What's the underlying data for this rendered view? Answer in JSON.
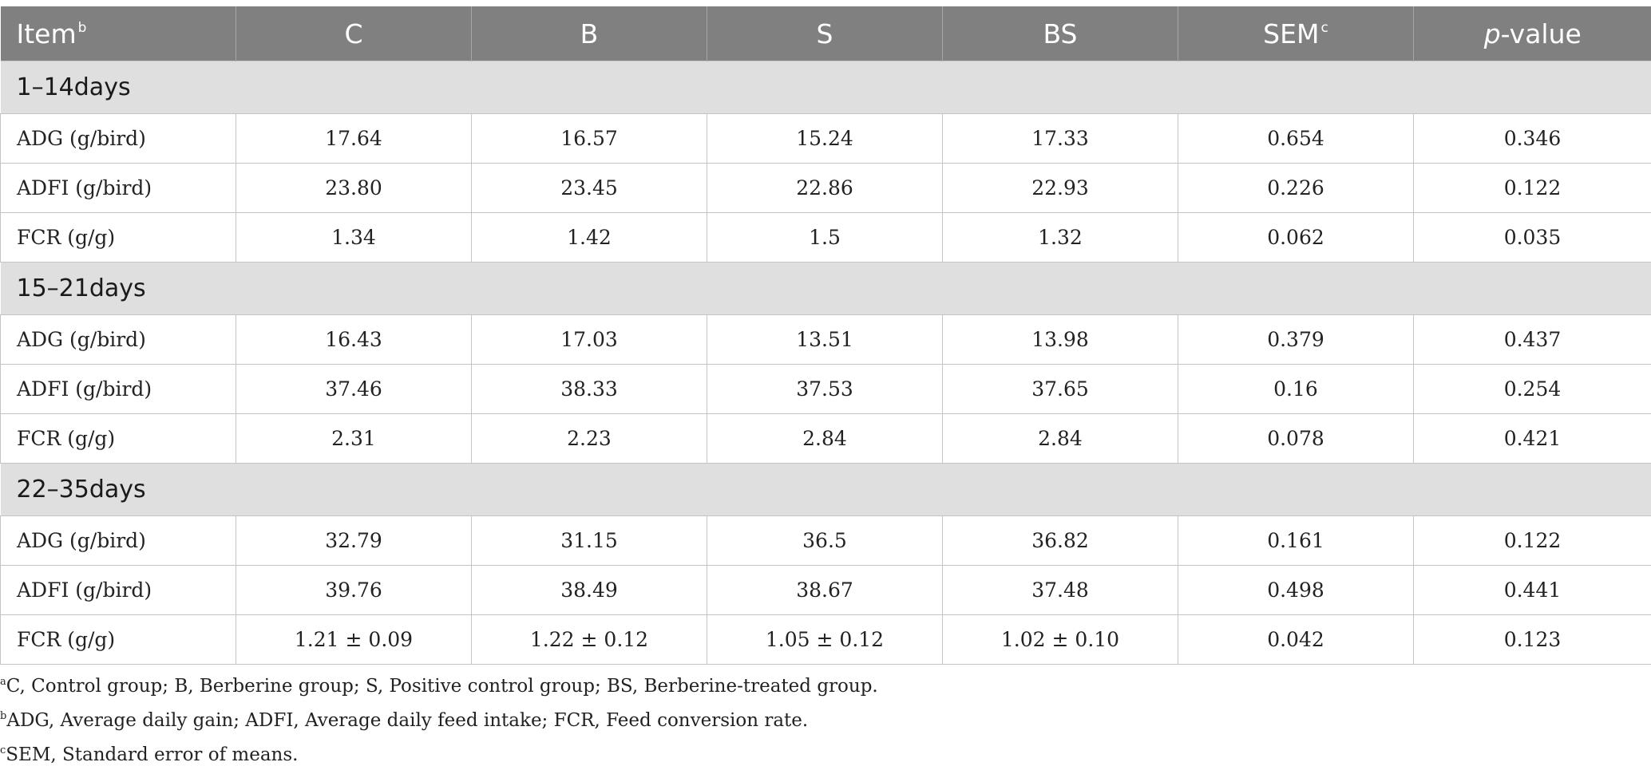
{
  "table": {
    "headers": {
      "item": "Item",
      "item_sup": "b",
      "c": "C",
      "b": "B",
      "s": "S",
      "bs": "BS",
      "sem": "SEM",
      "sem_sup": "c",
      "p_italic": "p",
      "p_rest": "-value"
    },
    "sections": [
      {
        "label": "1–14days",
        "rows": [
          [
            "ADG (g/bird)",
            "17.64",
            "16.57",
            "15.24",
            "17.33",
            "0.654",
            "0.346"
          ],
          [
            "ADFI (g/bird)",
            "23.80",
            "23.45",
            "22.86",
            "22.93",
            "0.226",
            "0.122"
          ],
          [
            "FCR (g/g)",
            "1.34",
            "1.42",
            "1.5",
            "1.32",
            "0.062",
            "0.035"
          ]
        ]
      },
      {
        "label": "15–21days",
        "rows": [
          [
            "ADG (g/bird)",
            "16.43",
            "17.03",
            "13.51",
            "13.98",
            "0.379",
            "0.437"
          ],
          [
            "ADFI (g/bird)",
            "37.46",
            "38.33",
            "37.53",
            "37.65",
            "0.16",
            "0.254"
          ],
          [
            "FCR (g/g)",
            "2.31",
            "2.23",
            "2.84",
            "2.84",
            "0.078",
            "0.421"
          ]
        ]
      },
      {
        "label": "22–35days",
        "rows": [
          [
            "ADG (g/bird)",
            "32.79",
            "31.15",
            "36.5",
            "36.82",
            "0.161",
            "0.122"
          ],
          [
            "ADFI (g/bird)",
            "39.76",
            "38.49",
            "38.67",
            "37.48",
            "0.498",
            "0.441"
          ],
          [
            "FCR (g/g)",
            "1.21 ± 0.09",
            "1.22 ± 0.12",
            "1.05 ± 0.12",
            "1.02 ± 0.10",
            "0.042",
            "0.123"
          ]
        ]
      }
    ]
  },
  "footnotes": [
    {
      "mark": "a",
      "text": "C, Control group; B, Berberine group; S, Positive control group; BS, Berberine-treated group."
    },
    {
      "mark": "b",
      "text": "ADG, Average daily gain; ADFI, Average daily feed intake; FCR, Feed conversion rate."
    },
    {
      "mark": "c",
      "text": "SEM, Standard error of means."
    }
  ]
}
